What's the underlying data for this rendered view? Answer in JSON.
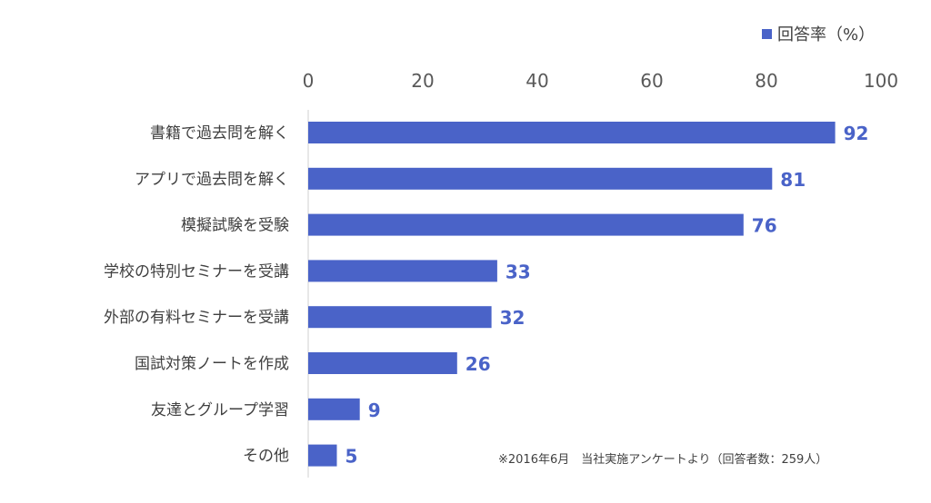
{
  "chart_data": {
    "type": "bar",
    "orientation": "horizontal",
    "categories": [
      "書籍で過去問を解く",
      "アプリで過去問を解く",
      "模擬試験を受験",
      "学校の特別セミナーを受講",
      "外部の有料セミナーを受講",
      "国試対策ノートを作成",
      "友達とグループ学習",
      "その他"
    ],
    "series": [
      {
        "name": "回答率（%）",
        "values": [
          92,
          81,
          76,
          33,
          32,
          26,
          9,
          5
        ]
      }
    ],
    "xlim": [
      0,
      100
    ],
    "xticks": [
      0,
      20,
      40,
      60,
      80,
      100
    ],
    "axis_position": "top",
    "grid": false,
    "legend": "top-right",
    "data_labels": true,
    "bar_color": "#4a63c8",
    "label_color": "#4a63c8",
    "note": "※2016年6月　当社実施アンケートより（回答者数：259人）"
  }
}
